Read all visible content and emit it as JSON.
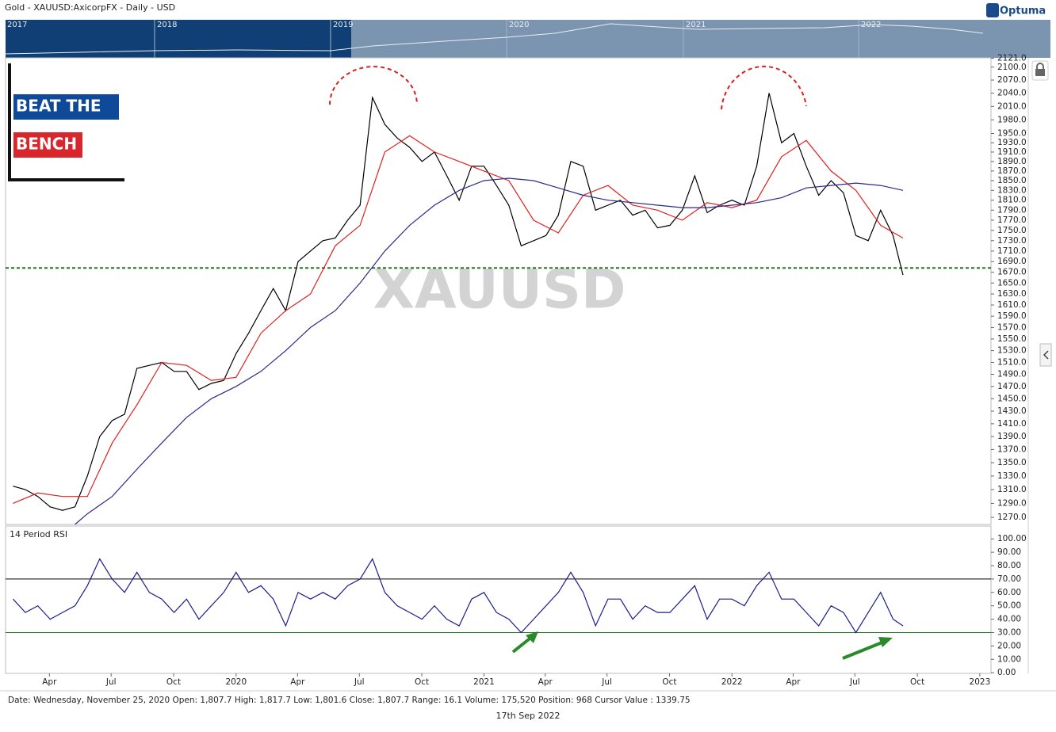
{
  "header": {
    "title": "Gold - XAUUSD:AxicorpFX - Daily - USD",
    "brand": "Optuma"
  },
  "navigator": {
    "labels": [
      "2017",
      "2018",
      "2019",
      "2020",
      "2021",
      "2022"
    ]
  },
  "logo": {
    "line1": "BEAT THE",
    "line2": "BENCH"
  },
  "chart_data": [
    {
      "type": "line",
      "watermark": "XAUUSD",
      "log_scale": true,
      "xlim": [
        2019.07,
        2023.045
      ],
      "ylim": [
        1260,
        2122
      ],
      "yticks": [
        {
          "value": 2121,
          "label": "2121.0"
        },
        {
          "value": 2100,
          "label": "2100.0"
        },
        {
          "value": 2070,
          "label": "2070.0"
        },
        {
          "value": 2040,
          "label": "2040.0"
        },
        {
          "value": 2010,
          "label": "2010.0"
        },
        {
          "value": 1980,
          "label": "1980.0"
        },
        {
          "value": 1950,
          "label": "1950.0"
        },
        {
          "value": 1930,
          "label": "1930.0"
        },
        {
          "value": 1910,
          "label": "1910.0"
        },
        {
          "value": 1890,
          "label": "1890.0"
        },
        {
          "value": 1870,
          "label": "1870.0"
        },
        {
          "value": 1850,
          "label": "1850.0"
        },
        {
          "value": 1830,
          "label": "1830.0"
        },
        {
          "value": 1810,
          "label": "1810.0"
        },
        {
          "value": 1790,
          "label": "1790.0"
        },
        {
          "value": 1770,
          "label": "1770.0"
        },
        {
          "value": 1750,
          "label": "1750.0"
        },
        {
          "value": 1730,
          "label": "1730.0"
        },
        {
          "value": 1710,
          "label": "1710.0"
        },
        {
          "value": 1690,
          "label": "1690.0"
        },
        {
          "value": 1670,
          "label": "1670.0"
        },
        {
          "value": 1650,
          "label": "1650.0"
        },
        {
          "value": 1630,
          "label": "1630.0"
        },
        {
          "value": 1610,
          "label": "1610.0"
        },
        {
          "value": 1590,
          "label": "1590.0"
        },
        {
          "value": 1570,
          "label": "1570.0"
        },
        {
          "value": 1550,
          "label": "1550.0"
        },
        {
          "value": 1530,
          "label": "1530.0"
        },
        {
          "value": 1510,
          "label": "1510.0"
        },
        {
          "value": 1490,
          "label": "1490.0"
        },
        {
          "value": 1470,
          "label": "1470.0"
        },
        {
          "value": 1450,
          "label": "1450.0"
        },
        {
          "value": 1430,
          "label": "1430.0"
        },
        {
          "value": 1410,
          "label": "1410.0"
        },
        {
          "value": 1390,
          "label": "1390.0"
        },
        {
          "value": 1370,
          "label": "1370.0"
        },
        {
          "value": 1350,
          "label": "1350.0"
        },
        {
          "value": 1330,
          "label": "1330.0"
        },
        {
          "value": 1310,
          "label": "1310.0"
        },
        {
          "value": 1290,
          "label": "1290.0"
        },
        {
          "value": 1270,
          "label": "1270.0"
        }
      ],
      "reference_lines": [
        {
          "value": 1678,
          "color": "#1f7a1f",
          "style": "dashed"
        }
      ],
      "series": [
        {
          "color": "#000000",
          "x": [
            2019.1,
            2019.15,
            2019.2,
            2019.25,
            2019.3,
            2019.35,
            2019.4,
            2019.45,
            2019.5,
            2019.55,
            2019.6,
            2019.65,
            2019.7,
            2019.75,
            2019.8,
            2019.85,
            2019.9,
            2019.95,
            2020.0,
            2020.05,
            2020.1,
            2020.15,
            2020.2,
            2020.25,
            2020.3,
            2020.35,
            2020.4,
            2020.45,
            2020.5,
            2020.55,
            2020.6,
            2020.65,
            2020.7,
            2020.75,
            2020.8,
            2020.85,
            2020.9,
            2020.95,
            2021.0,
            2021.05,
            2021.1,
            2021.15,
            2021.2,
            2021.25,
            2021.3,
            2021.35,
            2021.4,
            2021.45,
            2021.5,
            2021.55,
            2021.6,
            2021.65,
            2021.7,
            2021.75,
            2021.8,
            2021.85,
            2021.9,
            2021.95,
            2022.0,
            2022.05,
            2022.1,
            2022.15,
            2022.2,
            2022.25,
            2022.3,
            2022.35,
            2022.4,
            2022.45,
            2022.5,
            2022.55,
            2022.6,
            2022.65,
            2022.69
          ],
          "values": [
            1315,
            1310,
            1300,
            1285,
            1280,
            1285,
            1330,
            1390,
            1415,
            1425,
            1500,
            1505,
            1510,
            1495,
            1495,
            1465,
            1475,
            1480,
            1525,
            1560,
            1600,
            1640,
            1600,
            1690,
            1710,
            1730,
            1735,
            1770,
            1800,
            2030,
            1970,
            1940,
            1920,
            1890,
            1910,
            1860,
            1810,
            1880,
            1880,
            1840,
            1800,
            1720,
            1730,
            1740,
            1780,
            1890,
            1880,
            1790,
            1800,
            1810,
            1780,
            1790,
            1755,
            1760,
            1790,
            1860,
            1785,
            1800,
            1810,
            1800,
            1880,
            2040,
            1930,
            1950,
            1880,
            1820,
            1850,
            1825,
            1740,
            1730,
            1790,
            1740,
            1665
          ]
        },
        {
          "color": "#e02020",
          "x": [
            2019.1,
            2019.2,
            2019.3,
            2019.4,
            2019.5,
            2019.6,
            2019.7,
            2019.8,
            2019.9,
            2020.0,
            2020.1,
            2020.2,
            2020.3,
            2020.4,
            2020.5,
            2020.6,
            2020.7,
            2020.8,
            2020.9,
            2021.0,
            2021.1,
            2021.2,
            2021.3,
            2021.4,
            2021.5,
            2021.6,
            2021.7,
            2021.8,
            2021.9,
            2022.0,
            2022.1,
            2022.2,
            2022.3,
            2022.4,
            2022.5,
            2022.6,
            2022.69
          ],
          "values": [
            1290,
            1305,
            1300,
            1300,
            1380,
            1440,
            1510,
            1505,
            1480,
            1485,
            1560,
            1600,
            1630,
            1720,
            1760,
            1910,
            1945,
            1910,
            1890,
            1870,
            1850,
            1770,
            1745,
            1820,
            1840,
            1800,
            1790,
            1770,
            1805,
            1795,
            1810,
            1900,
            1935,
            1870,
            1830,
            1760,
            1735
          ]
        },
        {
          "color": "#2a2a8c",
          "x": [
            2019.35,
            2019.4,
            2019.5,
            2019.6,
            2019.7,
            2019.8,
            2019.9,
            2020.0,
            2020.1,
            2020.2,
            2020.3,
            2020.4,
            2020.5,
            2020.6,
            2020.7,
            2020.8,
            2020.9,
            2021.0,
            2021.1,
            2021.2,
            2021.3,
            2021.4,
            2021.5,
            2021.6,
            2021.7,
            2021.8,
            2021.9,
            2022.0,
            2022.1,
            2022.2,
            2022.3,
            2022.4,
            2022.5,
            2022.6,
            2022.69
          ],
          "values": [
            1260,
            1275,
            1300,
            1340,
            1380,
            1420,
            1450,
            1470,
            1495,
            1530,
            1570,
            1600,
            1650,
            1710,
            1760,
            1800,
            1830,
            1850,
            1855,
            1850,
            1835,
            1820,
            1810,
            1805,
            1800,
            1795,
            1795,
            1800,
            1805,
            1815,
            1835,
            1840,
            1845,
            1840,
            1830
          ]
        }
      ]
    },
    {
      "type": "line",
      "title": "14 Period RSI",
      "xlim": [
        2019.07,
        2023.045
      ],
      "xticks": [
        {
          "value": 2019.247,
          "label": "Apr"
        },
        {
          "value": 2019.496,
          "label": "Jul"
        },
        {
          "value": 2019.748,
          "label": "Oct"
        },
        2020,
        {
          "value": 2020.248,
          "label": "Apr"
        },
        {
          "value": 2020.497,
          "label": "Jul"
        },
        {
          "value": 2020.749,
          "label": "Oct"
        },
        2021,
        {
          "value": 2021.247,
          "label": "Apr"
        },
        {
          "value": 2021.496,
          "label": "Jul"
        },
        {
          "value": 2021.748,
          "label": "Oct"
        },
        2022,
        {
          "value": 2022.247,
          "label": "Apr"
        },
        {
          "value": 2022.496,
          "label": "Jul"
        },
        {
          "value": 2022.748,
          "label": "Oct"
        },
        2023
      ],
      "ylim": [
        -0.5,
        109
      ],
      "yticks": [
        {
          "value": 100,
          "label": "100.00"
        },
        {
          "value": 90,
          "label": "90.00"
        },
        {
          "value": 80,
          "label": "80.00"
        },
        {
          "value": 70,
          "label": "70.00"
        },
        {
          "value": 60,
          "label": "60.00"
        },
        {
          "value": 50,
          "label": "50.00"
        },
        {
          "value": 40,
          "label": "40.00"
        },
        {
          "value": 30,
          "label": "30.00"
        },
        {
          "value": 20,
          "label": "20.00"
        },
        {
          "value": 10,
          "label": "10.00"
        },
        {
          "value": 0,
          "label": "0.00"
        }
      ],
      "reference_lines": [
        {
          "value": 70,
          "color": "#000000",
          "style": "solid"
        },
        {
          "value": 30,
          "color": "#1f7a1f",
          "style": "solid"
        }
      ],
      "series": [
        {
          "color": "#1c1c8c",
          "x": [
            2019.1,
            2019.15,
            2019.2,
            2019.25,
            2019.3,
            2019.35,
            2019.4,
            2019.45,
            2019.5,
            2019.55,
            2019.6,
            2019.65,
            2019.7,
            2019.75,
            2019.8,
            2019.85,
            2019.9,
            2019.95,
            2020.0,
            2020.05,
            2020.1,
            2020.15,
            2020.2,
            2020.25,
            2020.3,
            2020.35,
            2020.4,
            2020.45,
            2020.5,
            2020.55,
            2020.6,
            2020.65,
            2020.7,
            2020.75,
            2020.8,
            2020.85,
            2020.9,
            2020.95,
            2021.0,
            2021.05,
            2021.1,
            2021.15,
            2021.2,
            2021.25,
            2021.3,
            2021.35,
            2021.4,
            2021.45,
            2021.5,
            2021.55,
            2021.6,
            2021.65,
            2021.7,
            2021.75,
            2021.8,
            2021.85,
            2021.9,
            2021.95,
            2022.0,
            2022.05,
            2022.1,
            2022.15,
            2022.2,
            2022.25,
            2022.3,
            2022.35,
            2022.4,
            2022.45,
            2022.5,
            2022.55,
            2022.6,
            2022.65,
            2022.69
          ],
          "values": [
            55,
            45,
            50,
            40,
            45,
            50,
            65,
            85,
            70,
            60,
            75,
            60,
            55,
            45,
            55,
            40,
            50,
            60,
            75,
            60,
            65,
            55,
            35,
            60,
            55,
            60,
            55,
            65,
            70,
            85,
            60,
            50,
            45,
            40,
            50,
            40,
            35,
            55,
            60,
            45,
            40,
            30,
            40,
            50,
            60,
            75,
            60,
            35,
            55,
            55,
            40,
            50,
            45,
            45,
            55,
            65,
            40,
            55,
            55,
            50,
            65,
            75,
            55,
            55,
            45,
            35,
            50,
            45,
            30,
            45,
            60,
            40,
            35
          ]
        }
      ]
    }
  ],
  "status": {
    "text": "Date: Wednesday, November 25, 2020 Open: 1,807.7 High: 1,817.7 Low: 1,801.6 Close: 1,807.7 Range: 16.1 Volume: 175,520 Position: 968 Cursor Value : 1339.75",
    "date": "17th Sep 2022"
  }
}
